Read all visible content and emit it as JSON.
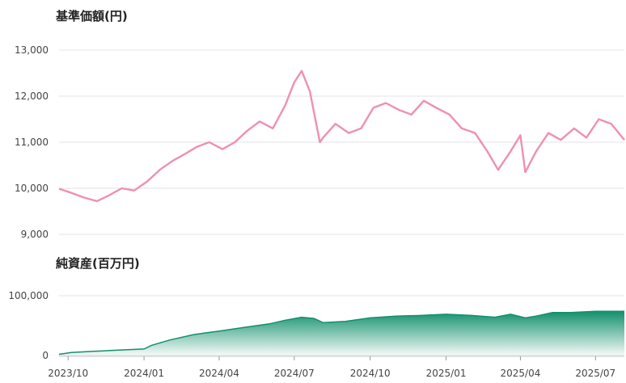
{
  "chart_data": [
    {
      "type": "line",
      "title": "基準価額(円)",
      "ylim": [
        9000,
        13000
      ],
      "yticks": [
        9000,
        10000,
        11000,
        12000,
        13000
      ],
      "ytick_labels": [
        "9,000",
        "10,000",
        "11,000",
        "12,000",
        "13,000"
      ],
      "grid": true,
      "color": "#ef8fb4",
      "series": [
        {
          "x": [
            "2023-09-20",
            "2023-10-05",
            "2023-10-20",
            "2023-11-05",
            "2023-11-20",
            "2023-12-05",
            "2023-12-20",
            "2024-01-05",
            "2024-01-20",
            "2024-02-05",
            "2024-02-20",
            "2024-03-05",
            "2024-03-20",
            "2024-04-05",
            "2024-04-20",
            "2024-05-05",
            "2024-05-20",
            "2024-06-05",
            "2024-06-20",
            "2024-07-01",
            "2024-07-10",
            "2024-07-20",
            "2024-08-01",
            "2024-08-05",
            "2024-08-20",
            "2024-09-05",
            "2024-09-20",
            "2024-10-05",
            "2024-10-20",
            "2024-11-05",
            "2024-11-20",
            "2024-12-05",
            "2024-12-20",
            "2025-01-05",
            "2025-01-20",
            "2025-02-05",
            "2025-02-20",
            "2025-03-05",
            "2025-03-20",
            "2025-04-01",
            "2025-04-07",
            "2025-04-20",
            "2025-05-05",
            "2025-05-20",
            "2025-06-05",
            "2025-06-20",
            "2025-07-05",
            "2025-07-20",
            "2025-08-05"
          ],
          "values": [
            9990,
            9900,
            9800,
            9720,
            9850,
            10000,
            9950,
            10150,
            10400,
            10600,
            10750,
            10900,
            11000,
            10850,
            11000,
            11250,
            11450,
            11300,
            11800,
            12300,
            12550,
            12100,
            11000,
            11100,
            11400,
            11200,
            11300,
            11750,
            11850,
            11700,
            11600,
            11900,
            11750,
            11600,
            11300,
            11200,
            10800,
            10400,
            10800,
            11150,
            10350,
            10800,
            11200,
            11050,
            11300,
            11100,
            11500,
            11400,
            11050
          ]
        }
      ]
    },
    {
      "type": "area",
      "title": "純資産(百万円)",
      "ylim": [
        0,
        100000
      ],
      "yticks": [
        0,
        100000
      ],
      "ytick_labels": [
        "0",
        "100,000"
      ],
      "grid": true,
      "color": "#12906c",
      "x_tick_labels": [
        "2023/10",
        "2024/01",
        "2024/04",
        "2024/07",
        "2024/10",
        "2025/01",
        "2025/04",
        "2025/07"
      ],
      "series": [
        {
          "x": [
            "2023-09-20",
            "2023-10-05",
            "2023-11-01",
            "2023-12-01",
            "2024-01-01",
            "2024-01-10",
            "2024-02-01",
            "2024-03-01",
            "2024-04-01",
            "2024-05-01",
            "2024-06-01",
            "2024-06-20",
            "2024-07-10",
            "2024-07-25",
            "2024-08-05",
            "2024-09-01",
            "2024-10-01",
            "2024-11-01",
            "2024-12-01",
            "2025-01-01",
            "2025-02-01",
            "2025-03-01",
            "2025-03-20",
            "2025-04-07",
            "2025-04-20",
            "2025-05-10",
            "2025-06-01",
            "2025-07-01",
            "2025-08-05"
          ],
          "values": [
            2000,
            5000,
            7000,
            9000,
            11000,
            17000,
            26000,
            35000,
            41000,
            47000,
            53000,
            59000,
            64000,
            62000,
            55000,
            57000,
            63000,
            66000,
            67000,
            69000,
            67000,
            64000,
            69000,
            63000,
            66000,
            72000,
            72000,
            74000,
            74000
          ]
        }
      ]
    }
  ]
}
